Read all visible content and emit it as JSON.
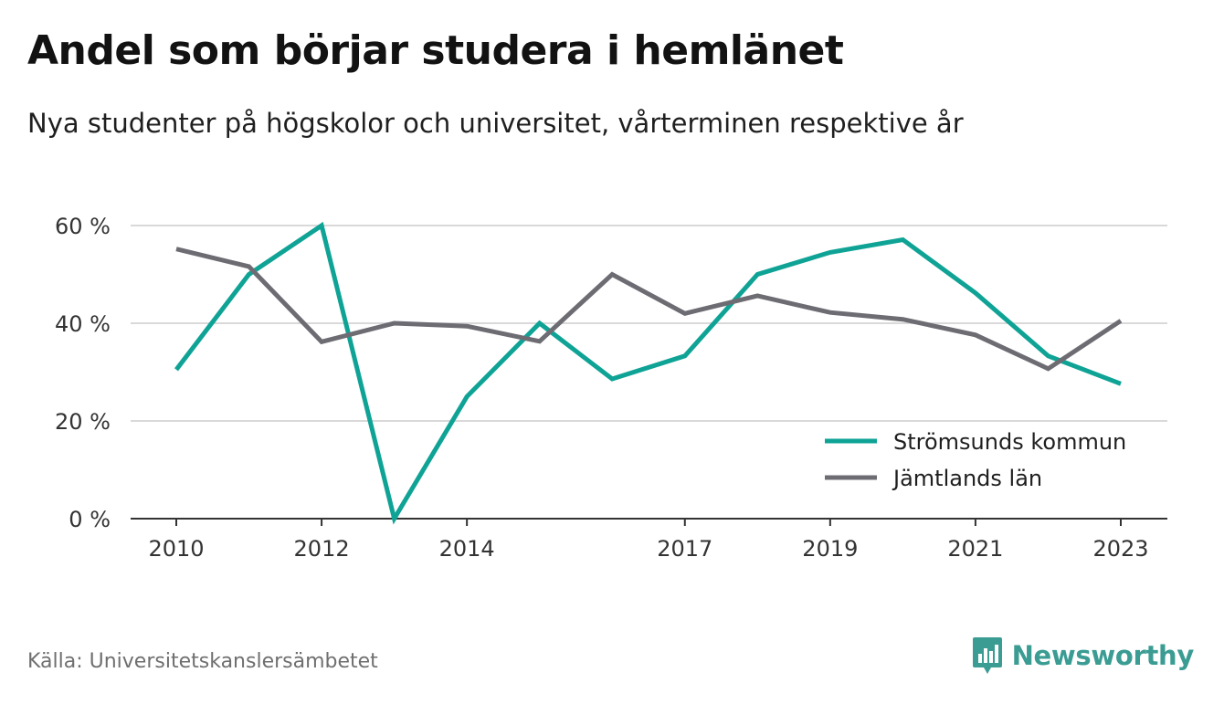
{
  "header": {
    "title": "Andel som börjar studera i hemlänet",
    "subtitle": "Nya studenter på högskolor och universitet, vårterminen respektive år"
  },
  "footer": {
    "source": "Källa: Universitetskanslersämbetet",
    "brand": "Newsworthy",
    "brand_icon": "bar-chart-speech-bubble-icon"
  },
  "colors": {
    "series_1": "#0fa396",
    "series_2": "#6e6c73",
    "grid": "#d9d9d9",
    "axis": "#333333",
    "brand": "#3a9c93"
  },
  "chart_data": {
    "type": "line",
    "x": [
      2010,
      2011,
      2012,
      2013,
      2014,
      2015,
      2016,
      2017,
      2018,
      2019,
      2020,
      2021,
      2022,
      2023
    ],
    "x_tick_labels": [
      "2010",
      "2012",
      "2014",
      "2017",
      "2019",
      "2021",
      "2023"
    ],
    "x_tick_values": [
      2010,
      2012,
      2014,
      2017,
      2019,
      2021,
      2023
    ],
    "y_ticks": [
      0,
      20,
      40,
      60
    ],
    "y_tick_labels": [
      "0 %",
      "20 %",
      "40 %",
      "60 %"
    ],
    "ylim": [
      0,
      60
    ],
    "grid": true,
    "legend_position": "bottom-right",
    "series": [
      {
        "name": "Strömsunds kommun",
        "color": "#0fa396",
        "values": [
          30.5,
          50.0,
          60.0,
          0.0,
          25.0,
          40.0,
          28.6,
          33.3,
          50.0,
          54.5,
          57.1,
          46.2,
          33.3,
          27.6
        ]
      },
      {
        "name": "Jämtlands län",
        "color": "#6e6c73",
        "values": [
          55.2,
          51.6,
          36.2,
          40.0,
          39.4,
          36.3,
          50.0,
          42.0,
          45.6,
          42.2,
          40.8,
          37.6,
          30.7,
          40.5
        ]
      }
    ]
  }
}
